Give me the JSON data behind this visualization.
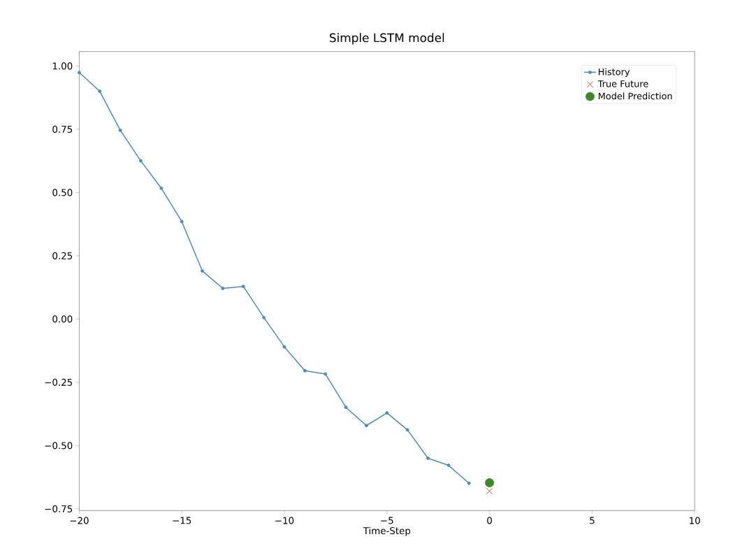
{
  "chart_data": {
    "type": "line",
    "title": "Simple LSTM model",
    "xlabel": "Time-Step",
    "xlim": [
      -20,
      10
    ],
    "ylim": [
      -0.757,
      1.057
    ],
    "xticks": [
      {
        "value": -20,
        "label": "−20"
      },
      {
        "value": -15,
        "label": "−15"
      },
      {
        "value": -10,
        "label": "−10"
      },
      {
        "value": -5,
        "label": "−5"
      },
      {
        "value": 0,
        "label": "0"
      },
      {
        "value": 5,
        "label": "5"
      },
      {
        "value": 10,
        "label": "10"
      }
    ],
    "yticks": [
      {
        "value": -0.75,
        "label": "−0.75"
      },
      {
        "value": -0.5,
        "label": "−0.50"
      },
      {
        "value": -0.25,
        "label": "−0.25"
      },
      {
        "value": 0,
        "label": "0.00"
      },
      {
        "value": 0.25,
        "label": "0.25"
      },
      {
        "value": 0.5,
        "label": "0.50"
      },
      {
        "value": 0.75,
        "label": "0.75"
      },
      {
        "value": 1.0,
        "label": "1.00"
      }
    ],
    "legend": "top right",
    "grid": false,
    "series": [
      {
        "name": "History",
        "marker": "circle",
        "color": "#4a8bc0",
        "x": [
          -20,
          -19,
          -18,
          -17,
          -16,
          -15,
          -14,
          -13,
          -12,
          -11,
          -10,
          -9,
          -8,
          -7,
          -6,
          -5,
          -4,
          -3,
          -2,
          -1
        ],
        "values": [
          0.974,
          0.9,
          0.746,
          0.625,
          0.517,
          0.385,
          0.19,
          0.121,
          0.129,
          0.006,
          -0.11,
          -0.204,
          -0.217,
          -0.349,
          -0.421,
          -0.371,
          -0.438,
          -0.55,
          -0.578,
          -0.649
        ]
      },
      {
        "name": "True Future",
        "type": "scatter",
        "marker": "cross",
        "color": "#e8463a",
        "x": [
          0
        ],
        "values": [
          -0.68
        ]
      },
      {
        "name": "Model Prediction",
        "type": "scatter",
        "marker": "circle",
        "color": "#3a8a2a",
        "x": [
          0
        ],
        "values": [
          -0.647
        ]
      }
    ]
  }
}
